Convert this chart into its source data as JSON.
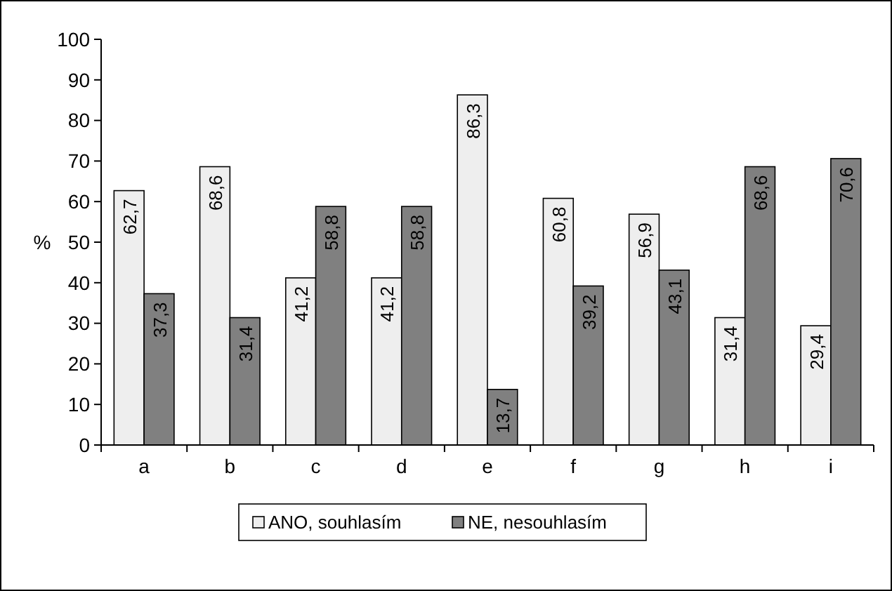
{
  "chart_data": {
    "type": "bar",
    "ylabel": "%",
    "categories": [
      "a",
      "b",
      "c",
      "d",
      "e",
      "f",
      "g",
      "h",
      "i"
    ],
    "series": [
      {
        "name": "ANO, souhlasím",
        "color": "#eeeeee",
        "values": [
          62.7,
          68.6,
          41.2,
          41.2,
          86.3,
          60.8,
          56.9,
          31.4,
          29.4
        ],
        "value_labels": [
          "62,7",
          "68,6",
          "41,2",
          "41,2",
          "86,3",
          "60,8",
          "56,9",
          "31,4",
          "29,4"
        ]
      },
      {
        "name": "NE, nesouhlasím",
        "color": "#808080",
        "values": [
          37.3,
          31.4,
          58.8,
          58.8,
          13.7,
          39.2,
          43.1,
          68.6,
          70.6
        ],
        "value_labels": [
          "37,3",
          "31,4",
          "58,8",
          "58,8",
          "13,7",
          "39,2",
          "43,1",
          "68,6",
          "70,6"
        ]
      }
    ],
    "ylim": [
      0,
      100
    ],
    "yticks": [
      0,
      10,
      20,
      30,
      40,
      50,
      60,
      70,
      80,
      90,
      100
    ],
    "grid": false,
    "legend": "bottom"
  }
}
